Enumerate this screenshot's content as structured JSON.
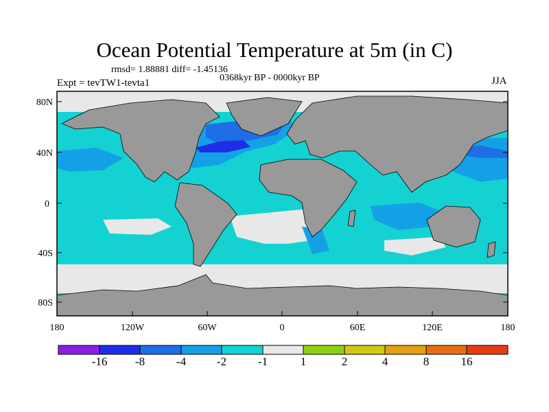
{
  "title": "Ocean Potential Temperature at 5m (in C)",
  "stats": "rmsd= 1.88881 diff= -1.45136",
  "period": "0368kyr BP - 0000kyr BP",
  "experiment": "Expt = tevTW1-tevta1",
  "season": "JJA",
  "lat_ticks": [
    "80N",
    "40N",
    "0",
    "40S",
    "80S"
  ],
  "lon_ticks": [
    "180",
    "120W",
    "60W",
    "0",
    "60E",
    "120E",
    "180"
  ],
  "colorbar": {
    "colors": [
      "#8c1ee6",
      "#1e2ee6",
      "#1e6ee6",
      "#14a0e6",
      "#14d2d2",
      "#e8e8e8",
      "#8cd214",
      "#d2c814",
      "#e6a014",
      "#e66e14",
      "#e63c14"
    ],
    "labels": [
      "-16",
      "-8",
      "-4",
      "-2",
      "-1",
      "1",
      "2",
      "4",
      "8",
      "16"
    ]
  },
  "map_colors": {
    "land": "#999999",
    "ocean_main": "#14d2d2",
    "cool_moderate": "#14a0e6",
    "cool_strong": "#1e6ee6",
    "cool_extreme": "#1e2ee6",
    "neutral": "#e8e8e8"
  }
}
